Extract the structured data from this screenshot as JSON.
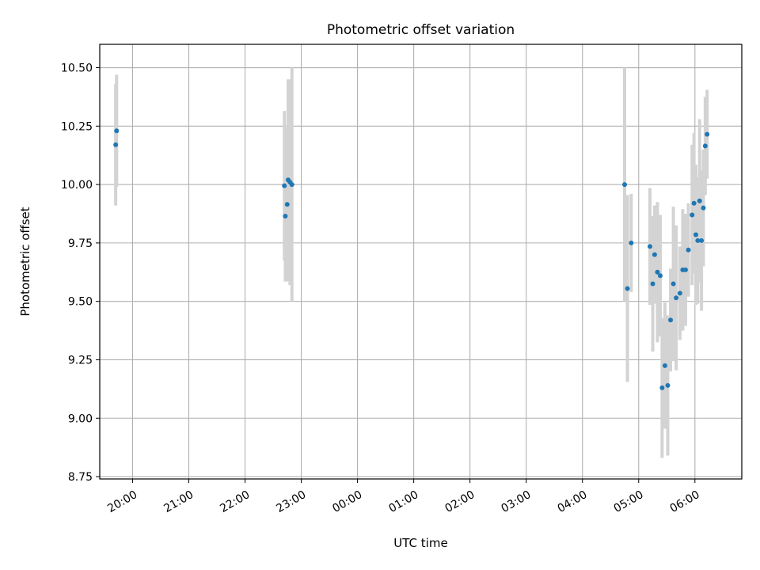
{
  "chart_data": {
    "type": "scatter",
    "title": "Photometric offset variation",
    "xlabel": "UTC time",
    "ylabel": "Photometric offset",
    "x_ticks": [
      "20:00",
      "21:00",
      "22:00",
      "23:00",
      "00:00",
      "01:00",
      "02:00",
      "03:00",
      "04:00",
      "05:00",
      "06:00"
    ],
    "y_ticks": [
      "8.75",
      "9.00",
      "9.25",
      "9.50",
      "9.75",
      "10.00",
      "10.25",
      "10.50"
    ],
    "xlim": [
      "19:25",
      "06:50"
    ],
    "ylim": [
      8.74,
      10.6
    ],
    "grid": true,
    "colors": {
      "point": "#1f77b4",
      "errorbar": "#d3d3d3",
      "grid": "#b0b0b0"
    },
    "series": [
      {
        "points": [
          {
            "x": "19:42",
            "y": 10.17,
            "err": 0.26
          },
          {
            "x": "19:43",
            "y": 10.23,
            "err": 0.24
          },
          {
            "x": "22:42",
            "y": 9.995,
            "err": 0.32
          },
          {
            "x": "22:43",
            "y": 9.865,
            "err": 0.28
          },
          {
            "x": "22:45",
            "y": 9.915,
            "err": 0.33
          },
          {
            "x": "22:46",
            "y": 10.02,
            "err": 0.43
          },
          {
            "x": "22:48",
            "y": 10.01,
            "err": 0.44
          },
          {
            "x": "22:50",
            "y": 10.0,
            "err": 0.5
          },
          {
            "x": "04:45",
            "y": 10.0,
            "err": 0.5
          },
          {
            "x": "04:48",
            "y": 9.555,
            "err": 0.4
          },
          {
            "x": "04:52",
            "y": 9.75,
            "err": 0.21
          },
          {
            "x": "05:12",
            "y": 9.735,
            "err": 0.25
          },
          {
            "x": "05:15",
            "y": 9.575,
            "err": 0.29
          },
          {
            "x": "05:17",
            "y": 9.7,
            "err": 0.21
          },
          {
            "x": "05:20",
            "y": 9.625,
            "err": 0.3
          },
          {
            "x": "05:23",
            "y": 9.61,
            "err": 0.26
          },
          {
            "x": "05:25",
            "y": 9.13,
            "err": 0.3
          },
          {
            "x": "05:28",
            "y": 9.225,
            "err": 0.27
          },
          {
            "x": "05:31",
            "y": 9.14,
            "err": 0.3
          },
          {
            "x": "05:34",
            "y": 9.42,
            "err": 0.22
          },
          {
            "x": "05:37",
            "y": 9.575,
            "err": 0.33
          },
          {
            "x": "05:40",
            "y": 9.515,
            "err": 0.31
          },
          {
            "x": "05:44",
            "y": 9.535,
            "err": 0.2
          },
          {
            "x": "05:47",
            "y": 9.635,
            "err": 0.26
          },
          {
            "x": "05:50",
            "y": 9.635,
            "err": 0.24
          },
          {
            "x": "05:53",
            "y": 9.72,
            "err": 0.2
          },
          {
            "x": "05:57",
            "y": 9.87,
            "err": 0.3
          },
          {
            "x": "05:59",
            "y": 9.92,
            "err": 0.3
          },
          {
            "x": "06:01",
            "y": 9.785,
            "err": 0.3
          },
          {
            "x": "06:03",
            "y": 9.76,
            "err": 0.27
          },
          {
            "x": "06:05",
            "y": 9.93,
            "err": 0.35
          },
          {
            "x": "06:07",
            "y": 9.76,
            "err": 0.3
          },
          {
            "x": "06:09",
            "y": 9.9,
            "err": 0.25
          },
          {
            "x": "06:11",
            "y": 10.165,
            "err": 0.21
          },
          {
            "x": "06:13",
            "y": 10.215,
            "err": 0.19
          }
        ]
      }
    ]
  }
}
